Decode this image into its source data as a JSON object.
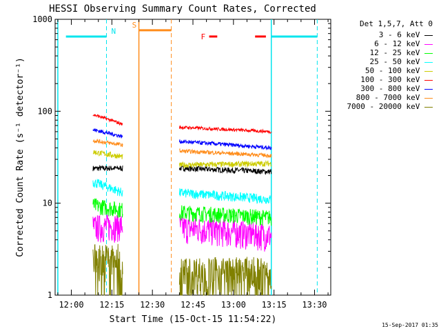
{
  "chart_data": {
    "type": "line",
    "title": "HESSI Observing Summary Count Rates, Corrected",
    "xlabel": "Start Time (15-Oct-15 11:54:22)",
    "ylabel": "Corrected Count Rate (s⁻¹ detector⁻¹)",
    "y_scale": "log",
    "ylim": [
      1,
      1000
    ],
    "xlim_minutes": [
      -5,
      36
    ],
    "x_ticks": [
      "12:00",
      "12:15",
      "12:30",
      "12:45",
      "13:00",
      "13:15",
      "13:30"
    ],
    "x_tick_minutes": [
      0,
      15,
      30,
      45,
      60,
      75,
      90
    ],
    "y_ticks": [
      "1",
      "10",
      "100",
      "1000"
    ],
    "y_tick_values": [
      1,
      10,
      100,
      1000
    ],
    "legend_header": "Det 1,5,7, Att 0",
    "legend_position": "right",
    "timestamp": "15-Sep-2017 01:35",
    "flags": [
      {
        "label": "N",
        "color": "#00e5ee",
        "value": 650,
        "segments": [
          [
            -2,
            13
          ],
          [
            74,
            91
          ]
        ],
        "dashed_at": [
          13,
          91
        ],
        "solid_at": [
          74
        ]
      },
      {
        "label": "S",
        "color": "#ff8c1a",
        "value": 760,
        "segments": [
          [
            25,
            37
          ]
        ],
        "dashed_at": [
          37
        ],
        "solid_at": [
          25
        ]
      },
      {
        "label": "F",
        "color": "#ff0000",
        "value": 650,
        "segments": [
          [
            51,
            54
          ],
          [
            68,
            72
          ]
        ]
      }
    ],
    "data_gaps_minutes": [
      [
        19,
        40
      ],
      [
        75,
        90
      ]
    ],
    "series": [
      {
        "name": "3 - 6 keV",
        "color": "#000000",
        "segments": [
          {
            "x": [
              8,
              19
            ],
            "y": [
              24,
              24
            ]
          },
          {
            "x": [
              40,
              74
            ],
            "y": [
              24,
              22
            ]
          }
        ]
      },
      {
        "name": "6 - 12 keV",
        "color": "#ff00ff",
        "segments": [
          {
            "x": [
              8,
              19
            ],
            "y": [
              5.5,
              5.8
            ]
          },
          {
            "x": [
              40,
              74
            ],
            "y": [
              5.5,
              4.5
            ]
          }
        ]
      },
      {
        "name": "12 - 25 keV",
        "color": "#00ff00",
        "segments": [
          {
            "x": [
              8,
              19
            ],
            "y": [
              9.5,
              8.5
            ]
          },
          {
            "x": [
              40,
              74
            ],
            "y": [
              8,
              7
            ]
          }
        ]
      },
      {
        "name": "25 - 50 keV",
        "color": "#00ffff",
        "segments": [
          {
            "x": [
              8,
              19
            ],
            "y": [
              17,
              13
            ]
          },
          {
            "x": [
              40,
              74
            ],
            "y": [
              13,
              11
            ]
          }
        ]
      },
      {
        "name": "50 - 100 keV",
        "color": "#cccc00",
        "segments": [
          {
            "x": [
              8,
              19
            ],
            "y": [
              36,
              32
            ]
          },
          {
            "x": [
              40,
              74
            ],
            "y": [
              26,
              27
            ]
          }
        ]
      },
      {
        "name": "100 - 300 keV",
        "color": "#ff0000",
        "segments": [
          {
            "x": [
              8,
              19
            ],
            "y": [
              92,
              72
            ]
          },
          {
            "x": [
              40,
              74
            ],
            "y": [
              67,
              60
            ]
          }
        ]
      },
      {
        "name": "300 - 800 keV",
        "color": "#0000ff",
        "segments": [
          {
            "x": [
              8,
              19
            ],
            "y": [
              63,
              53
            ]
          },
          {
            "x": [
              40,
              74
            ],
            "y": [
              47,
              40
            ]
          }
        ]
      },
      {
        "name": "800 - 7000 keV",
        "color": "#ff8c1a",
        "segments": [
          {
            "x": [
              8,
              19
            ],
            "y": [
              48,
              43
            ]
          },
          {
            "x": [
              40,
              74
            ],
            "y": [
              37,
              33
            ]
          }
        ]
      },
      {
        "name": "7000 - 20000 keV",
        "color": "#808000",
        "segments": [
          {
            "x": [
              8,
              19
            ],
            "y": [
              2.5,
              2.5
            ]
          },
          {
            "x": [
              40,
              74
            ],
            "y": [
              1.8,
              1.8
            ]
          }
        ]
      }
    ]
  }
}
